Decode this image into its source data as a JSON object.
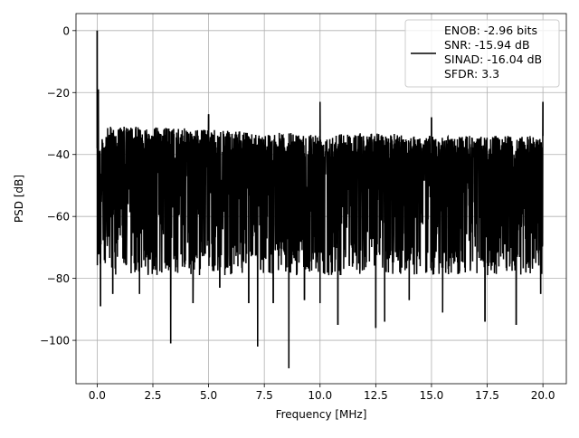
{
  "chart_data": {
    "type": "line",
    "xlabel": "Frequency [MHz]",
    "ylabel": "PSD [dB]",
    "xlim": [
      -0.95,
      21.05
    ],
    "ylim": [
      -114,
      5.5
    ],
    "xticks": [
      0.0,
      2.5,
      5.0,
      7.5,
      10.0,
      12.5,
      15.0,
      17.5,
      20.0
    ],
    "xtick_labels": [
      "0.0",
      "2.5",
      "5.0",
      "7.5",
      "10.0",
      "12.5",
      "15.0",
      "17.5",
      "20.0"
    ],
    "yticks": [
      0,
      -20,
      -40,
      -60,
      -80,
      -100
    ],
    "ytick_labels": [
      "0",
      "−20",
      "−40",
      "−60",
      "−80",
      "−100"
    ],
    "grid": true,
    "legend_position": "top-right",
    "legend_lines": [
      "ENOB: -2.96 bits",
      "SNR: -15.94 dB",
      "SINAD: -16.04 dB",
      "SFDR: 3.3"
    ],
    "series": [
      {
        "color": "#000000",
        "noise_floor": {
          "x_range": [
            0.0,
            20.0
          ],
          "upper_envelope_db": [
            -30,
            -34
          ],
          "typical_lower_db": -75,
          "description_points": [
            [
              0.0,
              -38
            ],
            [
              0.5,
              -31
            ],
            [
              2.5,
              -31
            ],
            [
              5.0,
              -32
            ],
            [
              7.5,
              -33
            ],
            [
              10.0,
              -33
            ],
            [
              12.5,
              -33
            ],
            [
              15.0,
              -34
            ],
            [
              17.5,
              -34
            ],
            [
              20.0,
              -34
            ]
          ]
        },
        "peaks": [
          {
            "x": 0.0,
            "y": 0
          },
          {
            "x": 0.05,
            "y": -19
          },
          {
            "x": 5.0,
            "y": -27
          },
          {
            "x": 10.0,
            "y": -23
          },
          {
            "x": 15.0,
            "y": -28
          },
          {
            "x": 20.0,
            "y": -23
          }
        ],
        "dips": [
          {
            "x": 0.15,
            "y": -89
          },
          {
            "x": 0.7,
            "y": -85
          },
          {
            "x": 1.9,
            "y": -85
          },
          {
            "x": 3.3,
            "y": -101
          },
          {
            "x": 4.3,
            "y": -88
          },
          {
            "x": 5.5,
            "y": -83
          },
          {
            "x": 6.8,
            "y": -88
          },
          {
            "x": 7.2,
            "y": -102
          },
          {
            "x": 7.9,
            "y": -88
          },
          {
            "x": 8.6,
            "y": -109
          },
          {
            "x": 9.3,
            "y": -87
          },
          {
            "x": 10.0,
            "y": -88
          },
          {
            "x": 10.8,
            "y": -95
          },
          {
            "x": 12.5,
            "y": -96
          },
          {
            "x": 12.9,
            "y": -94
          },
          {
            "x": 14.0,
            "y": -87
          },
          {
            "x": 15.5,
            "y": -91
          },
          {
            "x": 17.4,
            "y": -94
          },
          {
            "x": 18.8,
            "y": -95
          },
          {
            "x": 19.9,
            "y": -85
          }
        ]
      }
    ]
  }
}
